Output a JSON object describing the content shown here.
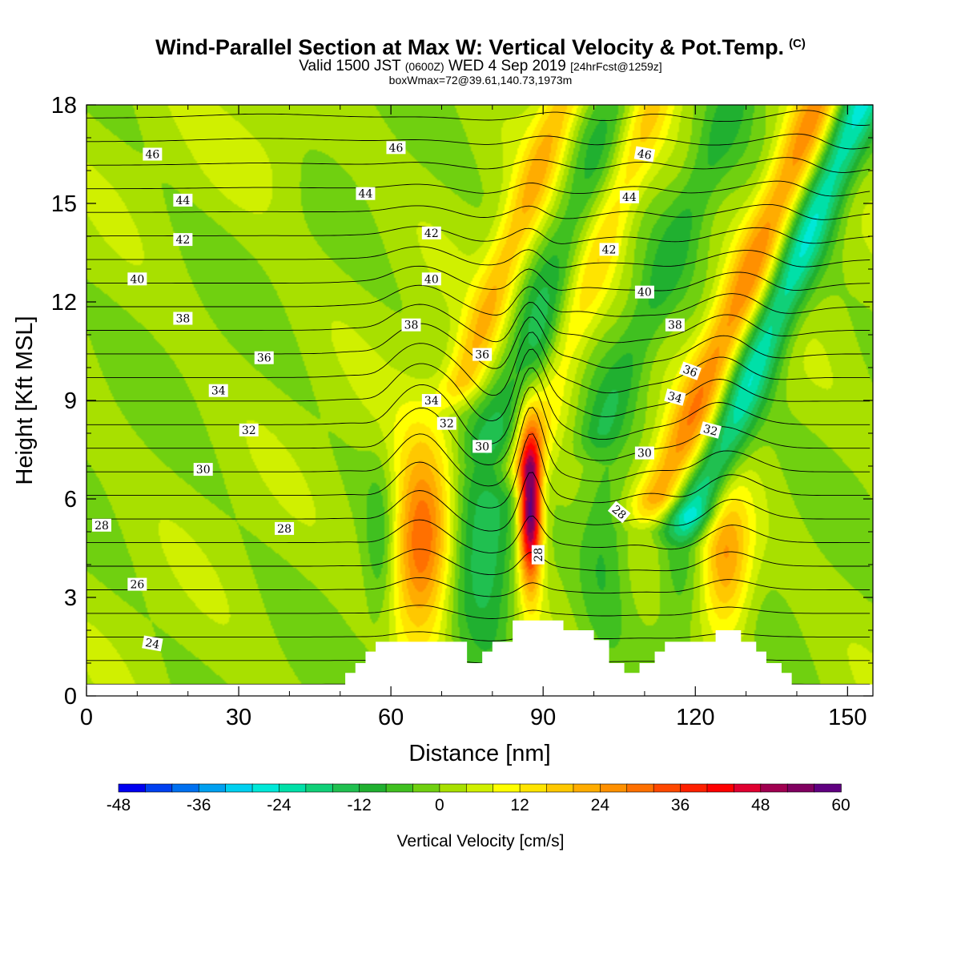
{
  "header": {
    "title": "Wind-Parallel Section at Max W: Vertical Velocity & Pot.Temp.",
    "title_mark": "(C)",
    "valid_prefix": "Valid 1500 JST",
    "valid_utc": "(0600Z)",
    "valid_date": "WED 4 Sep 2019",
    "forecast": "[24hrFcst@1259z]",
    "boxinfo": "boxWmax=72@39.61,140.73,1973m"
  },
  "chart_data": {
    "type": "heatmap",
    "xlabel": "Distance [nm]",
    "ylabel": "Height [Kft MSL]",
    "xlim": [
      0,
      155
    ],
    "ylim": [
      0,
      18
    ],
    "xticks": [
      0,
      30,
      60,
      90,
      120,
      150
    ],
    "yticks": [
      0,
      3,
      6,
      9,
      12,
      15,
      18
    ],
    "colorbar": {
      "label": "Vertical Velocity [cm/s]",
      "tick_values": [
        -48,
        -36,
        -24,
        -12,
        0,
        12,
        24,
        36,
        48,
        60
      ],
      "bins": [
        -48,
        -44,
        -40,
        -36,
        -32,
        -28,
        -24,
        -20,
        -16,
        -12,
        -8,
        -4,
        0,
        4,
        8,
        12,
        16,
        20,
        24,
        28,
        32,
        36,
        40,
        44,
        48,
        52,
        56,
        60
      ],
      "colors": [
        "#0000f0",
        "#0040f0",
        "#0070f0",
        "#00a0f0",
        "#00d0f0",
        "#00e8d8",
        "#00e0a8",
        "#10d078",
        "#20c050",
        "#20b030",
        "#40c020",
        "#70d010",
        "#a8e000",
        "#d0f000",
        "#ffff00",
        "#ffe400",
        "#ffc800",
        "#ffac00",
        "#ff9000",
        "#ff7000",
        "#ff4800",
        "#ff2000",
        "#ff0000",
        "#e00030",
        "#a00050",
        "#800060",
        "#600080"
      ]
    },
    "terrain": [
      [
        0,
        0.35
      ],
      [
        51,
        0.35
      ],
      [
        51,
        0.7
      ],
      [
        53,
        0.7
      ],
      [
        53,
        1
      ],
      [
        55,
        1
      ],
      [
        55,
        1.35
      ],
      [
        57,
        1.35
      ],
      [
        57,
        1.65
      ],
      [
        75,
        1.65
      ],
      [
        75,
        1
      ],
      [
        78,
        1
      ],
      [
        78,
        1.35
      ],
      [
        80,
        1.35
      ],
      [
        80,
        1.65
      ],
      [
        84,
        1.65
      ],
      [
        84,
        2.3
      ],
      [
        94,
        2.3
      ],
      [
        94,
        2
      ],
      [
        100,
        2
      ],
      [
        100,
        1.7
      ],
      [
        103,
        1.7
      ],
      [
        103,
        1
      ],
      [
        106,
        1
      ],
      [
        106,
        0.7
      ],
      [
        109,
        0.7
      ],
      [
        109,
        1
      ],
      [
        112,
        1
      ],
      [
        112,
        1.35
      ],
      [
        114,
        1.35
      ],
      [
        114,
        1.65
      ],
      [
        124,
        1.65
      ],
      [
        124,
        2
      ],
      [
        129,
        2
      ],
      [
        129,
        1.65
      ],
      [
        132,
        1.65
      ],
      [
        132,
        1.35
      ],
      [
        134,
        1.35
      ],
      [
        134,
        1
      ],
      [
        137,
        1
      ],
      [
        137,
        0.7
      ],
      [
        139,
        0.7
      ],
      [
        139,
        0.35
      ],
      [
        155,
        0.35
      ]
    ],
    "vertical_velocity_features": [
      {
        "x": 66,
        "y": 4.6,
        "sx": 4.2,
        "sy": 2.0,
        "peak": 34
      },
      {
        "x": 87.5,
        "y": 5.7,
        "sx": 1.6,
        "sy": 1.6,
        "peak": 60
      },
      {
        "x": 126,
        "y": 4.2,
        "sx": 3.6,
        "sy": 1.6,
        "peak": 26
      },
      {
        "x": 76,
        "y": 4.5,
        "sx": 3.5,
        "sy": 2.2,
        "peak": -14
      },
      {
        "x": 81,
        "y": 4.0,
        "sx": 3.0,
        "sy": 2.5,
        "peak": -10
      },
      {
        "x": 102,
        "y": 4.8,
        "sx": 3.6,
        "sy": 2.2,
        "peak": -11
      },
      {
        "x": 117,
        "y": 4.2,
        "sx": 3.2,
        "sy": 2.0,
        "peak": -9
      },
      {
        "x": 58,
        "y": 4.6,
        "sx": 2.2,
        "sy": 1.8,
        "peak": -10
      },
      {
        "x": 70,
        "y": 8.2,
        "sx": 7,
        "sy": 1.2,
        "peak": 4
      },
      {
        "x": 35,
        "y": 16.3,
        "sx": 8,
        "sy": 1.2,
        "peak": 4
      },
      {
        "x": 90,
        "y": 10.2,
        "sx": 3,
        "sy": 1.2,
        "peak": -7
      }
    ],
    "vertical_velocity_bands": [
      {
        "x0": 81,
        "y0": 12.5,
        "slope": 2.3,
        "width": 3,
        "ymin": 9.5,
        "ymax": 18,
        "peak": 18
      },
      {
        "x0": 91,
        "y0": 12.5,
        "slope": 2.3,
        "width": 3.5,
        "ymin": 8,
        "ymax": 18,
        "peak": -10
      },
      {
        "x0": 99,
        "y0": 12.5,
        "slope": 2.3,
        "width": 3.2,
        "ymin": 7,
        "ymax": 18,
        "peak": 14
      },
      {
        "x0": 113,
        "y0": 12.5,
        "slope": 2.6,
        "width": 3.2,
        "ymin": 8,
        "ymax": 18,
        "peak": -9
      },
      {
        "x0": 130,
        "y0": 12.5,
        "slope": 2.6,
        "width": 3.6,
        "ymin": 6,
        "ymax": 18,
        "peak": 26
      },
      {
        "x0": 138,
        "y0": 12.5,
        "slope": 2.6,
        "width": 3.4,
        "ymin": 5.5,
        "ymax": 18,
        "peak": -26
      }
    ],
    "pot_temp_contours": {
      "levels": [
        23,
        24,
        25,
        26,
        27,
        28,
        29,
        30,
        31,
        32,
        33,
        34,
        35,
        36,
        37,
        38,
        39,
        40,
        41,
        42,
        43,
        44,
        45,
        46,
        47
      ],
      "labels": [
        {
          "text": "46",
          "x": 13,
          "y": 16.5,
          "angle": 0
        },
        {
          "text": "46",
          "x": 61,
          "y": 16.7,
          "angle": 0
        },
        {
          "text": "46",
          "x": 110,
          "y": 16.5,
          "angle": 10
        },
        {
          "text": "44",
          "x": 19,
          "y": 15.1,
          "angle": 0
        },
        {
          "text": "44",
          "x": 55,
          "y": 15.3,
          "angle": 0
        },
        {
          "text": "44",
          "x": 107,
          "y": 15.2,
          "angle": 0
        },
        {
          "text": "42",
          "x": 19,
          "y": 13.9,
          "angle": 0
        },
        {
          "text": "42",
          "x": 68,
          "y": 14.1,
          "angle": 0
        },
        {
          "text": "42",
          "x": 103,
          "y": 13.6,
          "angle": 0
        },
        {
          "text": "40",
          "x": 10,
          "y": 12.7,
          "angle": 0
        },
        {
          "text": "40",
          "x": 68,
          "y": 12.7,
          "angle": 0
        },
        {
          "text": "40",
          "x": 110,
          "y": 12.3,
          "angle": 0
        },
        {
          "text": "38",
          "x": 19,
          "y": 11.5,
          "angle": 0
        },
        {
          "text": "38",
          "x": 64,
          "y": 11.3,
          "angle": 0
        },
        {
          "text": "38",
          "x": 116,
          "y": 11.3,
          "angle": 0
        },
        {
          "text": "36",
          "x": 35,
          "y": 10.3,
          "angle": 0
        },
        {
          "text": "36",
          "x": 78,
          "y": 10.4,
          "angle": 0
        },
        {
          "text": "36",
          "x": 119,
          "y": 9.9,
          "angle": 20
        },
        {
          "text": "34",
          "x": 26,
          "y": 9.3,
          "angle": 0
        },
        {
          "text": "34",
          "x": 68,
          "y": 9.0,
          "angle": 0
        },
        {
          "text": "34",
          "x": 116,
          "y": 9.1,
          "angle": 15
        },
        {
          "text": "32",
          "x": 32,
          "y": 8.1,
          "angle": 0
        },
        {
          "text": "32",
          "x": 71,
          "y": 8.3,
          "angle": 0
        },
        {
          "text": "32",
          "x": 123,
          "y": 8.1,
          "angle": 15
        },
        {
          "text": "30",
          "x": 23,
          "y": 6.9,
          "angle": 0
        },
        {
          "text": "30",
          "x": 78,
          "y": 7.6,
          "angle": 0
        },
        {
          "text": "30",
          "x": 110,
          "y": 7.4,
          "angle": 0
        },
        {
          "text": "28",
          "x": 3,
          "y": 5.2,
          "angle": 0
        },
        {
          "text": "28",
          "x": 39,
          "y": 5.1,
          "angle": 0
        },
        {
          "text": "28",
          "x": 105,
          "y": 5.6,
          "angle": 40
        },
        {
          "text": "28",
          "x": 89,
          "y": 4.3,
          "angle": -90
        },
        {
          "text": "26",
          "x": 10,
          "y": 3.4,
          "angle": 0
        },
        {
          "text": "24",
          "x": 13,
          "y": 1.6,
          "angle": 10
        }
      ]
    }
  }
}
